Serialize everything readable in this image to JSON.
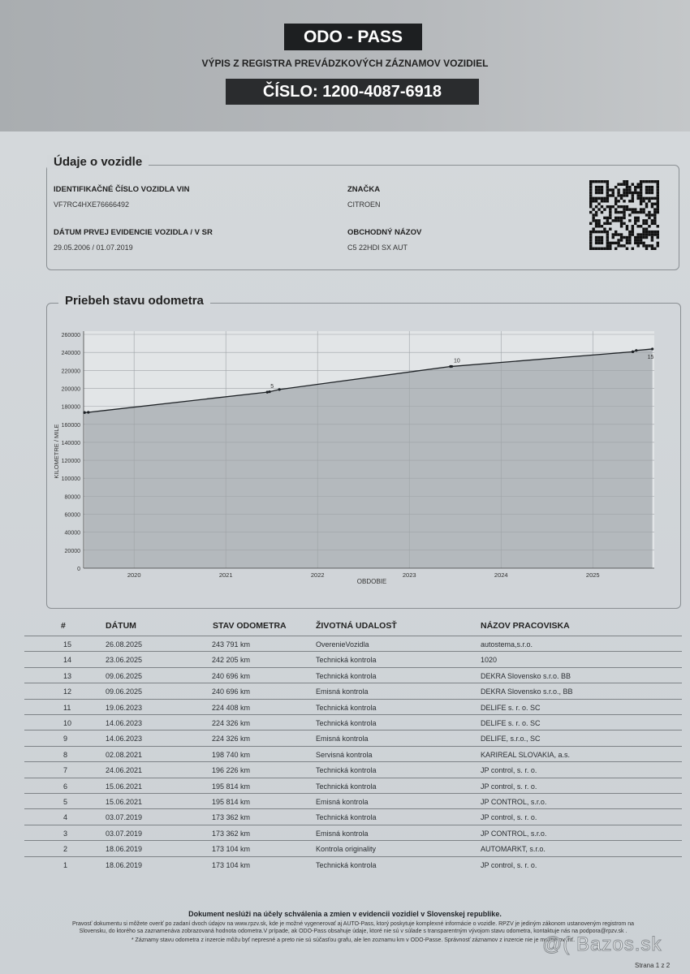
{
  "header": {
    "brand": "ODO - PASS",
    "subtitle": "VÝPIS Z REGISTRA PREVÁDZKOVÝCH ZÁZNAMOV VOZIDIEL",
    "number": "ČÍSLO: 1200-4087-6918"
  },
  "vehicle": {
    "title": "Údaje o vozidle",
    "vin_label": "IDENTIFIKAČNÉ ČÍSLO VOZIDLA VIN",
    "vin": "VF7RC4HXE76666492",
    "reg_label": "DÁTUM PRVEJ EVIDENCIE VOZIDLA / V SR",
    "reg": "29.05.2006 / 01.07.2019",
    "brand_label": "ZNAČKA",
    "brand": "CITROEN",
    "model_label": "OBCHODNÝ NÁZOV",
    "model": "C5 22HDI SX AUT"
  },
  "chart_section": {
    "title": "Priebeh stavu odometra"
  },
  "chart_data": {
    "type": "area",
    "xlabel": "OBDOBIE",
    "ylabel": "KILOMETRE / MILE",
    "ylim": [
      0,
      260000
    ],
    "yticks": [
      "0",
      "20000",
      "40000",
      "60000",
      "80000",
      "100000",
      "120000",
      "140000",
      "160000",
      "180000",
      "200000",
      "220000",
      "240000",
      "260000"
    ],
    "xticks": [
      "2020",
      "2021",
      "2022",
      "2023",
      "2024",
      "2025"
    ],
    "grid": true,
    "point_labels": [
      "5",
      "10",
      "15"
    ],
    "points": [
      {
        "n": 1,
        "date": "2019-06-18",
        "km": 173104
      },
      {
        "n": 2,
        "date": "2019-06-18",
        "km": 173104
      },
      {
        "n": 3,
        "date": "2019-07-03",
        "km": 173362
      },
      {
        "n": 4,
        "date": "2019-07-03",
        "km": 173362
      },
      {
        "n": 5,
        "date": "2021-06-15",
        "km": 195814
      },
      {
        "n": 6,
        "date": "2021-06-15",
        "km": 195814
      },
      {
        "n": 7,
        "date": "2021-06-24",
        "km": 196226
      },
      {
        "n": 8,
        "date": "2021-08-02",
        "km": 198740
      },
      {
        "n": 9,
        "date": "2023-06-14",
        "km": 224326
      },
      {
        "n": 10,
        "date": "2023-06-14",
        "km": 224326
      },
      {
        "n": 11,
        "date": "2023-06-19",
        "km": 224408
      },
      {
        "n": 12,
        "date": "2025-06-09",
        "km": 240696
      },
      {
        "n": 13,
        "date": "2025-06-09",
        "km": 240696
      },
      {
        "n": 14,
        "date": "2025-06-23",
        "km": 242205
      },
      {
        "n": 15,
        "date": "2025-08-26",
        "km": 243791
      }
    ]
  },
  "table": {
    "headers": [
      "#",
      "DÁTUM",
      "STAV ODOMETRA",
      "ŽIVOTNÁ UDALOSŤ",
      "NÁZOV PRACOVISKA"
    ],
    "rows": [
      [
        "15",
        "26.08.2025",
        "243 791 km",
        "OverenieVozidla",
        "autostema,s.r.o."
      ],
      [
        "14",
        "23.06.2025",
        "242 205 km",
        "Technická kontrola",
        "1020"
      ],
      [
        "13",
        "09.06.2025",
        "240 696 km",
        "Technická kontrola",
        "DEKRA Slovensko s.r.o. BB"
      ],
      [
        "12",
        "09.06.2025",
        "240 696 km",
        "Emisná kontrola",
        "DEKRA Slovensko  s.r.o., BB"
      ],
      [
        "11",
        "19.06.2023",
        "224 408 km",
        "Technická kontrola",
        "DELIFE s. r. o. SC"
      ],
      [
        "10",
        "14.06.2023",
        "224 326 km",
        "Technická kontrola",
        "DELIFE s. r. o. SC"
      ],
      [
        "9",
        "14.06.2023",
        "224 326 km",
        "Emisná kontrola",
        "DELIFE, s.r.o., SC"
      ],
      [
        "8",
        "02.08.2021",
        "198 740 km",
        "Servisná kontrola",
        "KARIREAL SLOVAKIA, a.s."
      ],
      [
        "7",
        "24.06.2021",
        "196 226 km",
        "Technická kontrola",
        "JP control, s. r. o."
      ],
      [
        "6",
        "15.06.2021",
        "195 814 km",
        "Technická kontrola",
        "JP control, s. r. o."
      ],
      [
        "5",
        "15.06.2021",
        "195 814 km",
        "Emisná kontrola",
        "JP CONTROL, s.r.o."
      ],
      [
        "4",
        "03.07.2019",
        "173 362 km",
        "Technická kontrola",
        "JP control, s. r. o."
      ],
      [
        "3",
        "03.07.2019",
        "173 362 km",
        "Emisná kontrola",
        "JP CONTROL, s.r.o."
      ],
      [
        "2",
        "18.06.2019",
        "173 104 km",
        "Kontrola originality",
        "AUTOMARKT, s.r.o."
      ],
      [
        "1",
        "18.06.2019",
        "173 104 km",
        "Technická kontrola",
        "JP control, s. r. o."
      ]
    ]
  },
  "footer": {
    "bold": "Dokument neslúži na účely schválenia a zmien v evidencii vozidiel v Slovenskej republike.",
    "line1": "Pravosť dokumentu si môžete overiť po zadaní dvoch údajov na www.rpzv.sk, kde je možné vygenerovať aj AUTO-Pass, ktorý poskytuje komplexné informácie o vozidle. RPZV je jediným zákonom ustanoveným registrom na",
    "line1b": "Slovensku, do ktorého sa zaznamenáva zobrazovaná hodnota odometra.V prípade, ak ODO-Pass obsahuje údaje, ktoré nie sú v súlade s transparentným vývojom stavu odometra, kontaktuje nás na podpora@rpzv.sk .",
    "line2": "* Záznamy stavu odometra z inzercie môžu byť nepresné a preto nie sú súčasťou grafu, ale len zoznamu km v ODO-Passe. Správnosť záznamov z inzercie nie je možné overiť.",
    "page": "Strana 1 z 2",
    "watermark": "@( Bazos.sk"
  }
}
